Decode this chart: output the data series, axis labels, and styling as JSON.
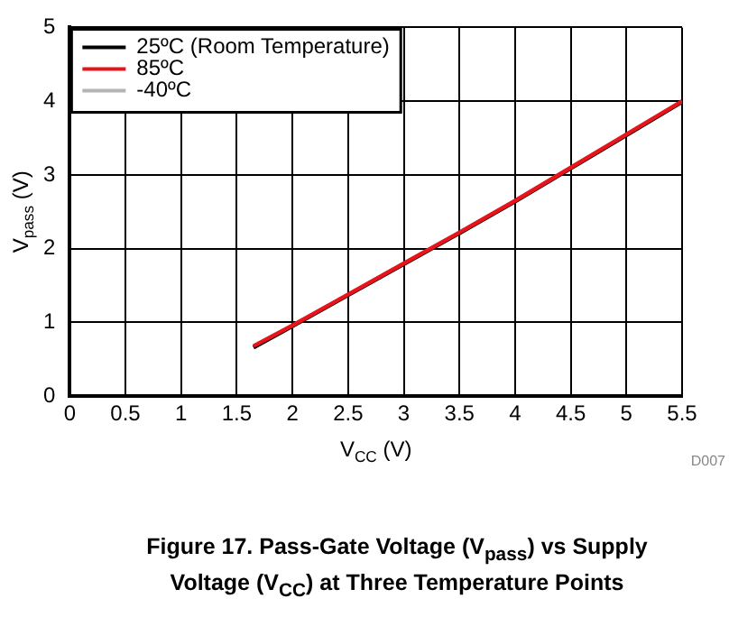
{
  "chart_data": {
    "type": "line",
    "title": "Figure 17. Pass-Gate Voltage (V$_{pass}$) vs Supply Voltage (V$_{CC}$) at Three Temperature Points",
    "xlabel": "V$_{CC}$ (V)",
    "ylabel": "V$_{pass}$ (V)",
    "x": [
      1.65,
      2,
      2.5,
      3,
      3.5,
      4,
      4.5,
      5,
      5.5
    ],
    "series": [
      {
        "name": "25ºC (Room Temperature)",
        "color": "#000000",
        "values": [
          0.66,
          0.95,
          1.37,
          1.79,
          2.21,
          2.64,
          3.09,
          3.54,
          3.99
        ]
      },
      {
        "name": "85ºC",
        "color": "#e8141b",
        "values": [
          0.68,
          0.96,
          1.38,
          1.8,
          2.22,
          2.65,
          3.1,
          3.55,
          4.0
        ]
      },
      {
        "name": "-40ºC",
        "color": "#b4b4b4",
        "values": [
          null,
          null,
          null,
          null,
          null,
          null,
          null,
          null,
          null
        ]
      }
    ],
    "xlim": [
      0,
      5.5
    ],
    "xticks": [
      0,
      0.5,
      1,
      1.5,
      2,
      2.5,
      3,
      3.5,
      4,
      4.5,
      5,
      5.5
    ],
    "ylim": [
      0,
      5
    ],
    "yticks": [
      0,
      1,
      2,
      3,
      4,
      5
    ],
    "grid": true,
    "legend": "top left",
    "marker": "none",
    "line_style": "solid",
    "annotations": [
      "D007"
    ]
  }
}
